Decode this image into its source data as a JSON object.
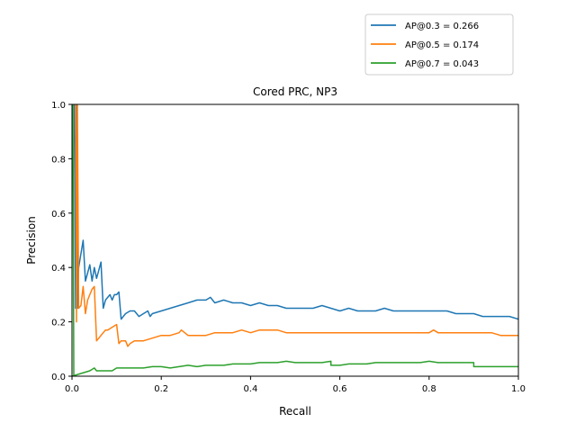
{
  "chart_data": {
    "type": "line",
    "title": "Cored PRC, NP3",
    "xlabel": "Recall",
    "ylabel": "Precision",
    "xlim": [
      0,
      1
    ],
    "ylim": [
      0,
      1
    ],
    "xticks": [
      "0.0",
      "0.2",
      "0.4",
      "0.6",
      "0.8",
      "1.0"
    ],
    "yticks": [
      "0.0",
      "0.2",
      "0.4",
      "0.6",
      "0.8",
      "1.0"
    ],
    "legend_position": "top-right",
    "series": [
      {
        "name": "AP@0.3 = 0.266",
        "color": "#1f77b4",
        "x": [
          0.005,
          0.008,
          0.01,
          0.012,
          0.015,
          0.02,
          0.025,
          0.03,
          0.035,
          0.04,
          0.045,
          0.05,
          0.055,
          0.06,
          0.065,
          0.07,
          0.075,
          0.08,
          0.085,
          0.09,
          0.095,
          0.1,
          0.105,
          0.11,
          0.115,
          0.12,
          0.13,
          0.14,
          0.15,
          0.16,
          0.17,
          0.175,
          0.18,
          0.2,
          0.22,
          0.24,
          0.26,
          0.28,
          0.3,
          0.31,
          0.32,
          0.34,
          0.36,
          0.38,
          0.4,
          0.42,
          0.44,
          0.46,
          0.48,
          0.5,
          0.52,
          0.54,
          0.56,
          0.58,
          0.6,
          0.62,
          0.64,
          0.66,
          0.68,
          0.7,
          0.72,
          0.74,
          0.76,
          0.78,
          0.8,
          0.82,
          0.84,
          0.86,
          0.88,
          0.9,
          0.92,
          0.94,
          0.96,
          0.98,
          1.0
        ],
        "y": [
          1.0,
          0.25,
          1.0,
          0.25,
          0.4,
          0.45,
          0.5,
          0.35,
          0.38,
          0.41,
          0.35,
          0.4,
          0.36,
          0.39,
          0.42,
          0.25,
          0.28,
          0.29,
          0.3,
          0.28,
          0.3,
          0.3,
          0.31,
          0.21,
          0.22,
          0.23,
          0.24,
          0.24,
          0.22,
          0.23,
          0.24,
          0.22,
          0.23,
          0.24,
          0.25,
          0.26,
          0.27,
          0.28,
          0.28,
          0.29,
          0.27,
          0.28,
          0.27,
          0.27,
          0.26,
          0.27,
          0.26,
          0.26,
          0.25,
          0.25,
          0.25,
          0.25,
          0.26,
          0.25,
          0.24,
          0.25,
          0.24,
          0.24,
          0.24,
          0.25,
          0.24,
          0.24,
          0.24,
          0.24,
          0.24,
          0.24,
          0.24,
          0.23,
          0.23,
          0.23,
          0.22,
          0.22,
          0.22,
          0.22,
          0.21
        ]
      },
      {
        "name": "AP@0.5 = 0.174",
        "color": "#ff7f0e",
        "x": [
          0.008,
          0.01,
          0.012,
          0.015,
          0.02,
          0.025,
          0.03,
          0.035,
          0.04,
          0.045,
          0.05,
          0.055,
          0.06,
          0.065,
          0.07,
          0.075,
          0.08,
          0.09,
          0.1,
          0.105,
          0.11,
          0.115,
          0.12,
          0.125,
          0.13,
          0.14,
          0.16,
          0.18,
          0.2,
          0.22,
          0.24,
          0.245,
          0.26,
          0.28,
          0.3,
          0.32,
          0.34,
          0.36,
          0.38,
          0.4,
          0.42,
          0.44,
          0.46,
          0.48,
          0.5,
          0.52,
          0.54,
          0.56,
          0.58,
          0.6,
          0.62,
          0.64,
          0.66,
          0.68,
          0.7,
          0.72,
          0.74,
          0.76,
          0.78,
          0.8,
          0.81,
          0.82,
          0.84,
          0.86,
          0.88,
          0.9,
          0.92,
          0.94,
          0.96,
          0.98,
          1.0
        ],
        "y": [
          1.0,
          0.2,
          1.0,
          0.25,
          0.26,
          0.33,
          0.23,
          0.28,
          0.3,
          0.32,
          0.33,
          0.13,
          0.14,
          0.15,
          0.16,
          0.17,
          0.17,
          0.18,
          0.19,
          0.12,
          0.13,
          0.13,
          0.13,
          0.11,
          0.12,
          0.13,
          0.13,
          0.14,
          0.15,
          0.15,
          0.16,
          0.17,
          0.15,
          0.15,
          0.15,
          0.16,
          0.16,
          0.16,
          0.17,
          0.16,
          0.17,
          0.17,
          0.17,
          0.16,
          0.16,
          0.16,
          0.16,
          0.16,
          0.16,
          0.16,
          0.16,
          0.16,
          0.16,
          0.16,
          0.16,
          0.16,
          0.16,
          0.16,
          0.16,
          0.16,
          0.17,
          0.16,
          0.16,
          0.16,
          0.16,
          0.16,
          0.16,
          0.16,
          0.15,
          0.15,
          0.15
        ]
      },
      {
        "name": "AP@0.7 = 0.043",
        "color": "#2ca02c",
        "x": [
          0.0,
          0.002,
          0.004,
          0.0,
          0.02,
          0.04,
          0.05,
          0.055,
          0.07,
          0.09,
          0.1,
          0.12,
          0.14,
          0.16,
          0.18,
          0.2,
          0.22,
          0.24,
          0.26,
          0.28,
          0.3,
          0.32,
          0.34,
          0.36,
          0.38,
          0.4,
          0.42,
          0.44,
          0.46,
          0.48,
          0.5,
          0.52,
          0.54,
          0.56,
          0.58,
          0.58,
          0.6,
          0.62,
          0.64,
          0.66,
          0.68,
          0.7,
          0.72,
          0.74,
          0.76,
          0.78,
          0.8,
          0.82,
          0.84,
          0.86,
          0.88,
          0.9,
          0.9,
          0.92,
          0.94,
          0.96,
          0.98,
          1.0
        ],
        "y": [
          1.0,
          1.0,
          0.0,
          0.0,
          0.01,
          0.02,
          0.03,
          0.02,
          0.02,
          0.02,
          0.03,
          0.03,
          0.03,
          0.03,
          0.035,
          0.035,
          0.03,
          0.035,
          0.04,
          0.035,
          0.04,
          0.04,
          0.04,
          0.045,
          0.045,
          0.045,
          0.05,
          0.05,
          0.05,
          0.055,
          0.05,
          0.05,
          0.05,
          0.05,
          0.055,
          0.04,
          0.04,
          0.045,
          0.045,
          0.045,
          0.05,
          0.05,
          0.05,
          0.05,
          0.05,
          0.05,
          0.055,
          0.05,
          0.05,
          0.05,
          0.05,
          0.05,
          0.035,
          0.035,
          0.035,
          0.035,
          0.035,
          0.035
        ]
      }
    ]
  }
}
